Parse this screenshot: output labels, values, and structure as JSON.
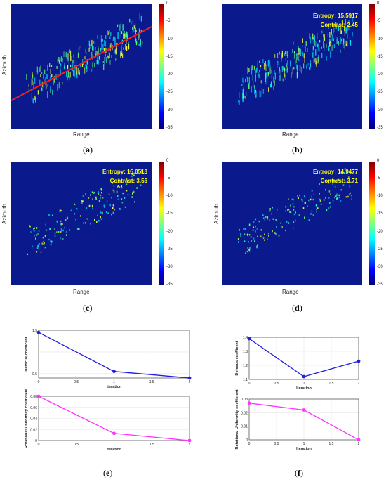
{
  "panels": {
    "a": {
      "caption": "a",
      "xlabel": "Range",
      "ylabel": "Azimuth"
    },
    "b": {
      "caption": "b",
      "xlabel": "Range",
      "ylabel": "Azimuth",
      "entropy": "Entropy: 15.5917",
      "contrast": "Contrast: 2.45"
    },
    "c": {
      "caption": "c",
      "xlabel": "Range",
      "ylabel": "Azimuth",
      "entropy": "Entropy: 15.0518",
      "contrast": "Contrast: 3.56"
    },
    "d": {
      "caption": "d",
      "xlabel": "Range",
      "ylabel": "Azimuth",
      "entropy": "Entropy: 14.9477",
      "contrast": "Contrast: 3.71"
    },
    "e": {
      "caption": "e"
    },
    "f": {
      "caption": "f"
    }
  },
  "colorbar_ticks": [
    "0",
    "-5",
    "-10",
    "-15",
    "-20",
    "-25",
    "-30",
    "-35"
  ],
  "colors": {
    "background": "#0a1a8c",
    "line_a": "#ff1a1a",
    "defocus_line": "#1f1fe0",
    "rotational_line": "#ff33ff",
    "metric_text": "#ffff00"
  },
  "chart_data": [
    {
      "type": "line",
      "panel": "e-top",
      "xlabel": "Iteration",
      "ylabel": "Defocus coefficent",
      "x": [
        0,
        1,
        2
      ],
      "y": [
        1.45,
        0.55,
        0.4
      ],
      "xlim": [
        0,
        2
      ],
      "ylim": [
        0.4,
        1.5
      ],
      "xticks": [
        "0",
        "0.5",
        "1",
        "1.5",
        "2"
      ],
      "yticks": [
        "0.5",
        "1",
        "1.5"
      ],
      "grid": true
    },
    {
      "type": "line",
      "panel": "e-bottom",
      "xlabel": "Iteration",
      "ylabel": "Rotational Uniformity coefficient",
      "x": [
        0,
        1,
        2
      ],
      "y": [
        0.08,
        0.013,
        0.0
      ],
      "xlim": [
        0,
        2
      ],
      "ylim": [
        0,
        0.08
      ],
      "xticks": [
        "0",
        "0.5",
        "1",
        "1.5",
        "2"
      ],
      "yticks": [
        "0",
        "0.02",
        "0.04",
        "0.06",
        "0.08"
      ],
      "grid": true
    },
    {
      "type": "line",
      "panel": "f-top",
      "xlabel": "Iteration",
      "ylabel": "Defocus coefficent",
      "x": [
        0,
        1,
        2
      ],
      "y": [
        1.39,
        1.12,
        1.23
      ],
      "xlim": [
        0,
        2
      ],
      "ylim": [
        1.1,
        1.4
      ],
      "xticks": [
        "0",
        "0.5",
        "1",
        "1.5",
        "2"
      ],
      "yticks": [
        "1.1",
        "1.2",
        "1.3",
        "1.4"
      ],
      "grid": true
    },
    {
      "type": "line",
      "panel": "f-bottom",
      "xlabel": "Iteration",
      "ylabel": "Rotational Uniformity coefficient",
      "x": [
        0,
        1,
        2
      ],
      "y": [
        0.027,
        0.022,
        0.0
      ],
      "xlim": [
        0,
        2
      ],
      "ylim": [
        0,
        0.03
      ],
      "xticks": [
        "0",
        "0.5",
        "1",
        "1.5",
        "2"
      ],
      "yticks": [
        "0",
        "0.01",
        "0.02",
        "0.03"
      ],
      "grid": true
    }
  ]
}
